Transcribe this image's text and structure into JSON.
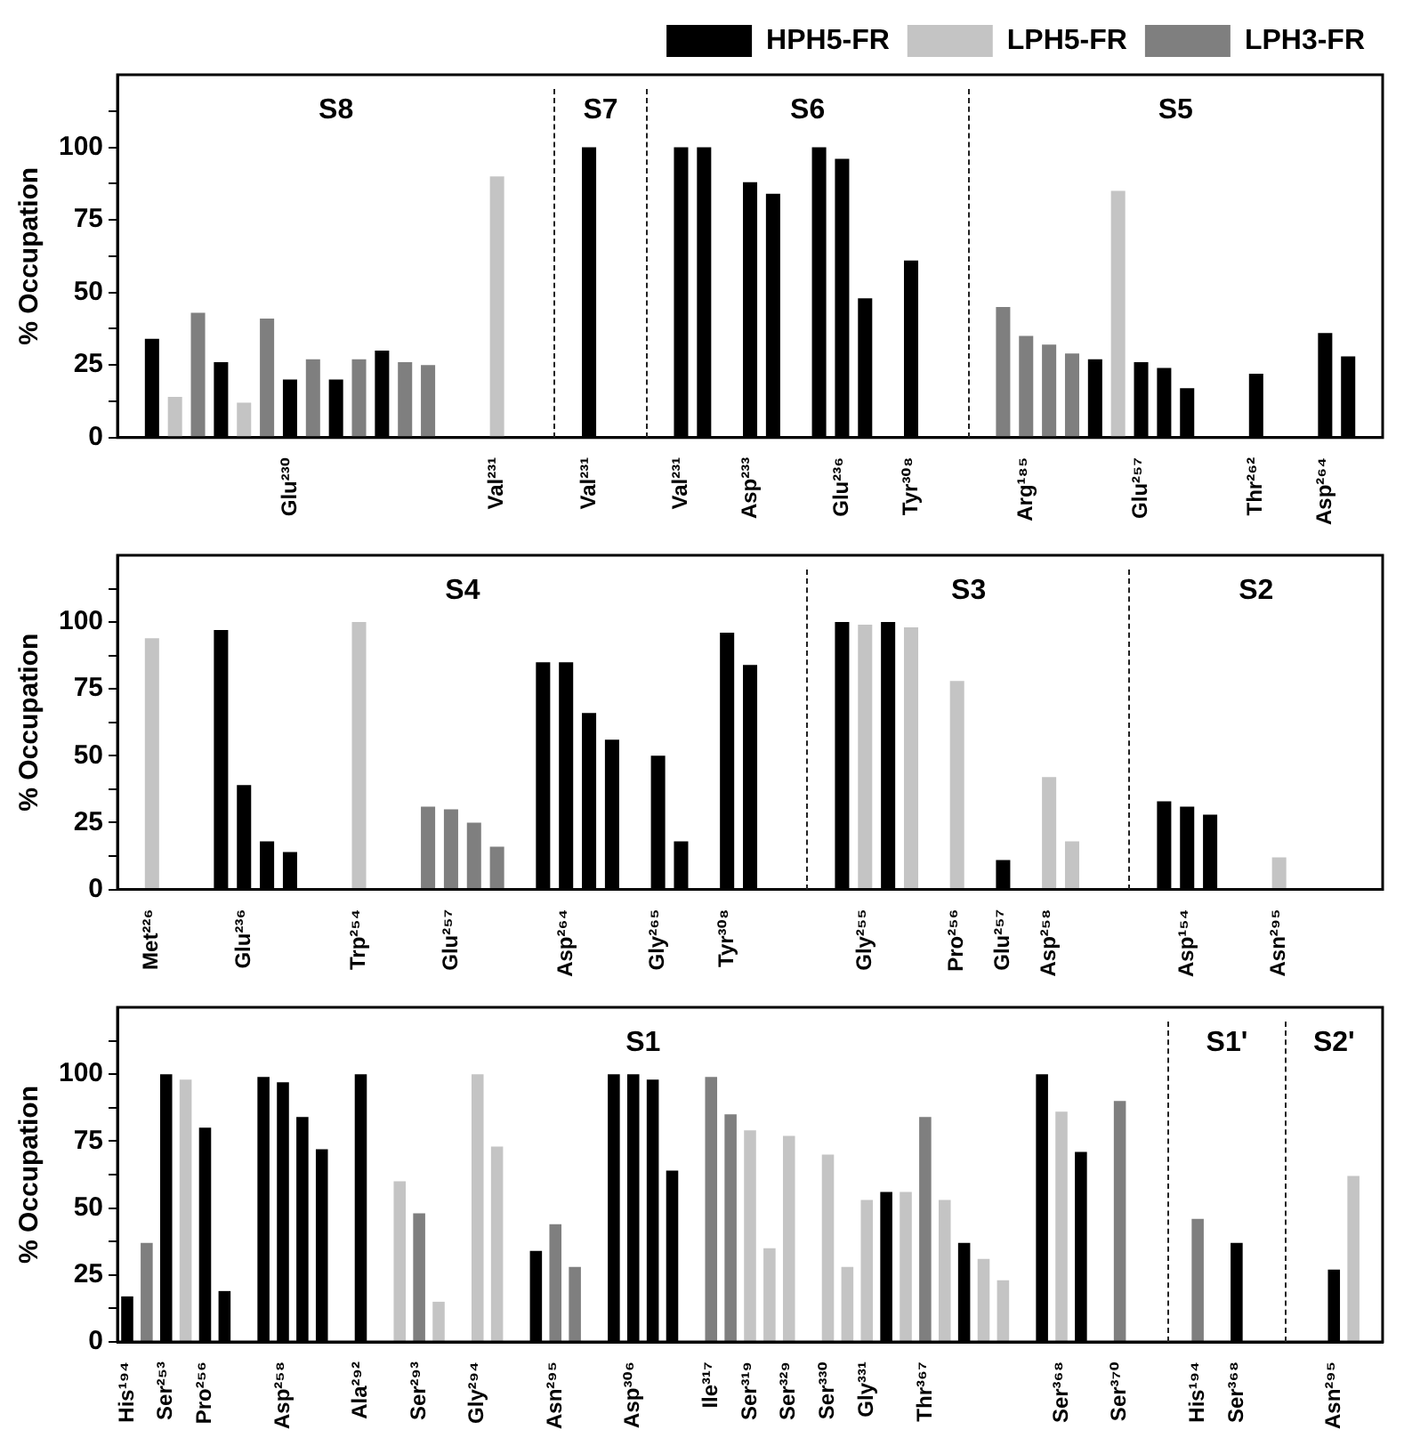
{
  "chart_data": [
    {
      "type": "bar",
      "ylabel": "% Occupation",
      "legend": "top right",
      "grid": false,
      "categories": [
        null,
        null,
        null,
        null,
        null,
        null,
        null,
        "Glu²³⁰",
        null,
        null,
        null,
        null,
        null,
        null,
        null,
        null,
        "Val²³¹",
        null,
        null,
        null,
        "Val²³¹",
        null,
        null,
        null,
        "Val²³¹",
        null,
        null,
        "Asp²³³",
        null,
        null,
        null,
        "Glu²³⁶",
        null,
        null,
        "Tyr³⁰⁸",
        null,
        null,
        null,
        null,
        "Arg¹⁸⁵",
        null,
        null,
        null,
        null,
        "Glu²⁵⁷",
        null,
        null,
        null,
        null,
        "Thr²⁶²",
        null,
        null,
        "Asp²⁶⁴",
        null,
        null
      ],
      "series": [
        {
          "name": "HPH5-FR",
          "color": "#000000",
          "values": [
            null,
            34,
            null,
            null,
            26,
            null,
            null,
            20,
            null,
            20,
            null,
            30,
            null,
            null,
            null,
            null,
            null,
            null,
            null,
            null,
            100,
            null,
            null,
            null,
            100,
            100,
            null,
            88,
            84,
            null,
            100,
            96,
            48,
            null,
            61,
            null,
            null,
            null,
            null,
            null,
            null,
            null,
            27,
            null,
            26,
            24,
            17,
            null,
            null,
            22,
            null,
            null,
            36,
            28,
            null
          ]
        },
        {
          "name": "LPH5-FR",
          "color": "#c4c4c4",
          "values": [
            null,
            null,
            14,
            null,
            null,
            12,
            null,
            null,
            null,
            null,
            null,
            null,
            null,
            null,
            null,
            null,
            90,
            null,
            null,
            null,
            null,
            null,
            null,
            null,
            null,
            null,
            null,
            null,
            null,
            null,
            null,
            null,
            null,
            null,
            null,
            null,
            null,
            null,
            null,
            null,
            null,
            null,
            null,
            85,
            null,
            null,
            null,
            null,
            null,
            null,
            null,
            null,
            null,
            null,
            null
          ]
        },
        {
          "name": "LPH3-FR",
          "color": "#7f7f7f",
          "values": [
            null,
            null,
            null,
            43,
            null,
            null,
            41,
            null,
            27,
            null,
            27,
            null,
            26,
            25,
            null,
            null,
            null,
            null,
            null,
            null,
            null,
            null,
            null,
            null,
            null,
            null,
            null,
            null,
            null,
            null,
            null,
            null,
            null,
            null,
            null,
            null,
            null,
            null,
            45,
            35,
            32,
            29,
            null,
            null,
            null,
            null,
            null,
            null,
            null,
            null,
            null,
            null,
            null,
            null,
            null
          ]
        }
      ],
      "ylim": [
        0,
        125
      ],
      "yticks": [
        0,
        {
          "value": 12.5,
          "label": null
        },
        25,
        {
          "value": 37.5,
          "label": null
        },
        50,
        {
          "value": 62.5,
          "label": null
        },
        75,
        {
          "value": 87.5,
          "label": null
        },
        100,
        {
          "value": 112.5,
          "label": null
        }
      ],
      "annotations": [
        "S8",
        "S7",
        "S6",
        "S5"
      ]
    },
    {
      "type": "bar",
      "ylabel": "% Occupation",
      "categories": [
        null,
        "Met²²⁶",
        null,
        null,
        null,
        "Glu²³⁶",
        null,
        null,
        null,
        null,
        "Trp²⁵⁴",
        null,
        null,
        null,
        "Glu²⁵⁷",
        null,
        null,
        null,
        null,
        "Asp²⁶⁴",
        null,
        null,
        null,
        "Gly²⁶⁵",
        null,
        null,
        "Tyr³⁰⁸",
        null,
        null,
        null,
        null,
        null,
        "Gly²⁵⁵",
        null,
        null,
        null,
        "Pro²⁵⁶",
        null,
        "Glu²⁵⁷",
        null,
        "Asp²⁵⁸",
        null,
        null,
        null,
        null,
        null,
        "Asp¹⁵⁴",
        null,
        null,
        null,
        "Asn²⁹⁵",
        null,
        null,
        null,
        null
      ],
      "series": [
        {
          "color": "#000000",
          "values": [
            null,
            null,
            null,
            null,
            97,
            39,
            18,
            14,
            null,
            null,
            null,
            null,
            null,
            null,
            null,
            null,
            null,
            null,
            85,
            85,
            66,
            56,
            null,
            50,
            18,
            null,
            96,
            84,
            null,
            null,
            null,
            100,
            null,
            100,
            null,
            null,
            null,
            null,
            11,
            null,
            null,
            null,
            null,
            null,
            null,
            33,
            31,
            28,
            null,
            null,
            null,
            null,
            null,
            null,
            null
          ]
        },
        {
          "color": "#c4c4c4",
          "values": [
            null,
            94,
            null,
            null,
            null,
            null,
            null,
            null,
            null,
            null,
            100,
            null,
            null,
            null,
            null,
            null,
            null,
            null,
            null,
            null,
            null,
            null,
            null,
            null,
            null,
            null,
            null,
            null,
            null,
            null,
            null,
            null,
            99,
            null,
            98,
            null,
            78,
            null,
            null,
            null,
            42,
            18,
            null,
            null,
            null,
            null,
            null,
            null,
            null,
            null,
            12,
            null,
            null,
            null,
            null
          ]
        },
        {
          "color": "#7f7f7f",
          "values": [
            null,
            null,
            null,
            null,
            null,
            null,
            null,
            null,
            null,
            null,
            null,
            null,
            null,
            31,
            30,
            25,
            16,
            null,
            null,
            null,
            null,
            null,
            null,
            null,
            null,
            null,
            null,
            null,
            null,
            null,
            null,
            null,
            null,
            null,
            null,
            null,
            null,
            null,
            null,
            null,
            null,
            null,
            null,
            null,
            null,
            null,
            null,
            null,
            null,
            null,
            null,
            null,
            null,
            null,
            null
          ]
        }
      ],
      "ylim": [
        0,
        125
      ],
      "yticks": [
        0,
        {
          "value": 12.5,
          "label": null
        },
        25,
        {
          "value": 37.5,
          "label": null
        },
        50,
        {
          "value": 62.5,
          "label": null
        },
        75,
        {
          "value": 87.5,
          "label": null
        },
        100,
        {
          "value": 112.5,
          "label": null
        }
      ],
      "annotations": [
        "S4",
        "S3",
        "S2"
      ]
    },
    {
      "type": "bar",
      "ylabel": "% Occupation",
      "categories": [
        "His¹⁹⁴",
        null,
        "Ser²⁵³",
        null,
        "Pro²⁵⁶",
        null,
        null,
        null,
        "Asp²⁵⁸",
        null,
        null,
        null,
        "Ala²⁹²",
        null,
        null,
        "Ser²⁹³",
        null,
        null,
        "Gly²⁹⁴",
        null,
        null,
        null,
        "Asn²⁹⁵",
        null,
        null,
        null,
        "Asp³⁰⁶",
        null,
        null,
        null,
        "Ile³¹⁷",
        null,
        "Ser³¹⁹",
        null,
        "Ser³²⁹",
        null,
        "Ser³³⁰",
        null,
        "Gly³³¹",
        null,
        null,
        "Thr³⁶⁷",
        null,
        null,
        null,
        null,
        null,
        null,
        "Ser³⁶⁸",
        null,
        null,
        "Ser³⁷⁰",
        null,
        null,
        null,
        "His¹⁹⁴",
        null,
        "Ser³⁶⁸",
        null,
        null,
        null,
        null,
        "Asn²⁹⁵",
        null,
        null
      ],
      "series": [
        {
          "color": "#000000",
          "values": [
            17,
            null,
            100,
            null,
            80,
            19,
            null,
            99,
            97,
            84,
            72,
            null,
            100,
            null,
            null,
            null,
            null,
            null,
            null,
            null,
            null,
            34,
            null,
            null,
            null,
            100,
            100,
            98,
            64,
            null,
            null,
            null,
            null,
            null,
            null,
            null,
            null,
            null,
            null,
            56,
            null,
            null,
            null,
            37,
            null,
            null,
            null,
            100,
            null,
            71,
            null,
            null,
            null,
            null,
            null,
            null,
            null,
            37,
            null,
            null,
            null,
            null,
            27,
            null,
            null
          ]
        },
        {
          "color": "#c4c4c4",
          "values": [
            null,
            null,
            null,
            98,
            null,
            null,
            null,
            null,
            null,
            null,
            null,
            null,
            null,
            null,
            60,
            null,
            15,
            null,
            100,
            73,
            null,
            null,
            null,
            null,
            null,
            null,
            null,
            null,
            null,
            null,
            null,
            null,
            79,
            35,
            77,
            null,
            70,
            28,
            53,
            null,
            56,
            null,
            53,
            null,
            31,
            23,
            null,
            null,
            86,
            null,
            null,
            null,
            null,
            null,
            null,
            null,
            null,
            null,
            null,
            null,
            null,
            null,
            null,
            62,
            null
          ]
        },
        {
          "color": "#7f7f7f",
          "values": [
            null,
            37,
            null,
            null,
            null,
            null,
            null,
            null,
            null,
            null,
            null,
            null,
            null,
            null,
            null,
            48,
            null,
            null,
            null,
            null,
            null,
            null,
            44,
            28,
            null,
            null,
            null,
            null,
            null,
            null,
            99,
            85,
            null,
            null,
            null,
            null,
            null,
            null,
            null,
            null,
            null,
            84,
            null,
            null,
            null,
            null,
            null,
            null,
            null,
            null,
            null,
            90,
            null,
            null,
            null,
            46,
            null,
            null,
            null,
            null,
            null,
            null,
            null,
            null,
            null
          ]
        }
      ],
      "ylim": [
        0,
        125
      ],
      "yticks": [
        0,
        {
          "value": 12.5,
          "label": null
        },
        25,
        {
          "value": 37.5,
          "label": null
        },
        50,
        {
          "value": 62.5,
          "label": null
        },
        75,
        {
          "value": 87.5,
          "label": null
        },
        100,
        {
          "value": 112.5,
          "label": null
        }
      ],
      "annotations": [
        "S1",
        "S1'",
        "S2'"
      ]
    }
  ]
}
